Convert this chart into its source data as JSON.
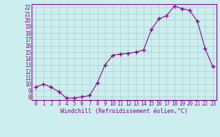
{
  "hours": [
    0,
    1,
    2,
    3,
    4,
    5,
    6,
    7,
    8,
    9,
    10,
    11,
    12,
    13,
    14,
    15,
    16,
    17,
    18,
    19,
    20,
    21,
    22,
    23
  ],
  "values": [
    9.5,
    10.0,
    9.5,
    8.8,
    7.8,
    7.8,
    8.0,
    8.2,
    10.2,
    13.0,
    14.5,
    14.7,
    14.8,
    15.0,
    15.3,
    18.5,
    20.2,
    20.7,
    22.2,
    21.8,
    21.5,
    19.8,
    15.5,
    12.7
  ],
  "line_color": "#880088",
  "marker": "+",
  "markersize": 4,
  "linewidth": 0.8,
  "bg_color": "#cceeee",
  "grid_color": "#aacccc",
  "xlabel": "Windchill (Refroidissement éolien,°C)",
  "xlabel_color": "#880088",
  "tick_color": "#880088",
  "xlim": [
    -0.5,
    23.5
  ],
  "ylim": [
    7.5,
    22.5
  ],
  "yticks": [
    8,
    9,
    10,
    11,
    12,
    13,
    14,
    15,
    16,
    17,
    18,
    19,
    20,
    21,
    22
  ],
  "xticks": [
    0,
    1,
    2,
    3,
    4,
    5,
    6,
    7,
    8,
    9,
    10,
    11,
    12,
    13,
    14,
    15,
    16,
    17,
    18,
    19,
    20,
    21,
    22,
    23
  ],
  "tick_fontsize": 5.5,
  "xlabel_fontsize": 6.0,
  "spine_color": "#880088",
  "markeredgewidth": 1.0
}
